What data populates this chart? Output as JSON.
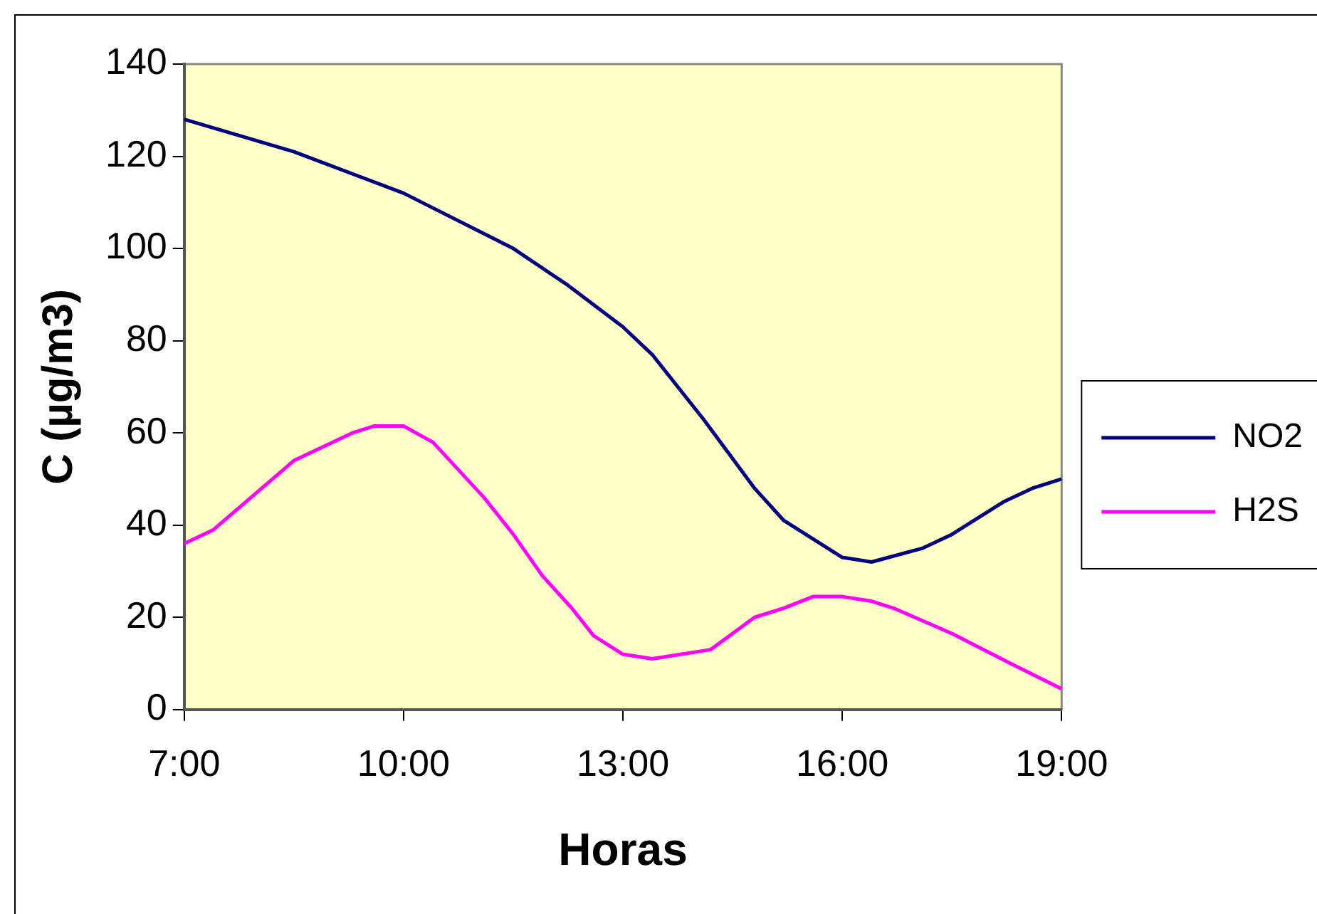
{
  "chart_data": {
    "type": "line",
    "xlabel": "Horas",
    "ylabel": "C (µg/m3)",
    "xlim": [
      7,
      19
    ],
    "ylim": [
      0,
      140
    ],
    "xticks": [
      {
        "value": 7,
        "label": "7:00"
      },
      {
        "value": 10,
        "label": "10:00"
      },
      {
        "value": 13,
        "label": "13:00"
      },
      {
        "value": 16,
        "label": "16:00"
      },
      {
        "value": 19,
        "label": "19:00"
      }
    ],
    "yticks": [
      0,
      20,
      40,
      60,
      80,
      100,
      120,
      140
    ],
    "grid": false,
    "legend": "right",
    "marker": "none",
    "line_style": "solid",
    "series": [
      {
        "name": "NO2",
        "color": "#000080",
        "x": [
          7,
          8.5,
          10,
          11.5,
          12.25,
          13,
          13.4,
          14.1,
          14.8,
          15.2,
          15.6,
          16,
          16.4,
          17.1,
          17.5,
          18.2,
          18.6,
          19
        ],
        "values": [
          128,
          121,
          112,
          100,
          92,
          83,
          77,
          63,
          48,
          41,
          37,
          33,
          32,
          35,
          38,
          45,
          48,
          50
        ]
      },
      {
        "name": "H2S",
        "color": "#ff00ff",
        "x": [
          7,
          7.4,
          8.5,
          9.3,
          9.6,
          10,
          10.4,
          11.1,
          11.5,
          11.9,
          12.3,
          12.6,
          13,
          13.4,
          14.2,
          14.8,
          15.2,
          15.6,
          16,
          16.4,
          16.7,
          17.5,
          18.3,
          19
        ],
        "values": [
          36,
          39,
          54,
          60,
          61.5,
          61.5,
          58,
          46,
          38,
          29,
          22,
          16,
          12,
          11,
          13,
          20,
          22,
          24.5,
          24.5,
          23.5,
          22,
          16.5,
          10,
          4.5
        ]
      }
    ]
  }
}
